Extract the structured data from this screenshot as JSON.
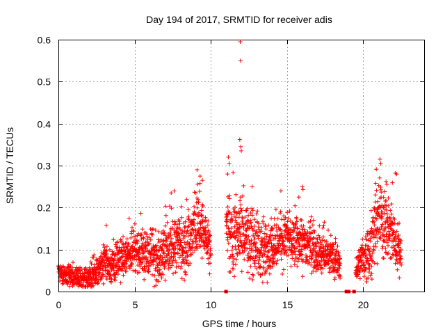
{
  "chart_data": {
    "type": "scatter",
    "title": "Day 194 of 2017, SRMTID for receiver adis",
    "xlabel": "GPS time / hours",
    "ylabel": "SRMTID / TECUs",
    "xlim": [
      0,
      24
    ],
    "ylim": [
      0,
      0.6
    ],
    "xticks": [
      "0",
      "5",
      "10",
      "15",
      "20"
    ],
    "yticks": [
      "0",
      "0.1",
      "0.2",
      "0.3",
      "0.4",
      "0.5",
      "0.6"
    ],
    "grid": true,
    "marker": "plus",
    "color": "#ff0000",
    "trend": [
      [
        0.0,
        0.045
      ],
      [
        0.5,
        0.04
      ],
      [
        1.0,
        0.035
      ],
      [
        1.5,
        0.03
      ],
      [
        2.0,
        0.03
      ],
      [
        2.5,
        0.045
      ],
      [
        3.0,
        0.07
      ],
      [
        3.5,
        0.06
      ],
      [
        4.0,
        0.075
      ],
      [
        4.5,
        0.09
      ],
      [
        5.0,
        0.1
      ],
      [
        5.5,
        0.09
      ],
      [
        6.0,
        0.085
      ],
      [
        6.5,
        0.075
      ],
      [
        7.0,
        0.095
      ],
      [
        7.5,
        0.12
      ],
      [
        8.0,
        0.11
      ],
      [
        8.5,
        0.115
      ],
      [
        9.0,
        0.16
      ],
      [
        9.5,
        0.14
      ],
      [
        10.0,
        0.1
      ],
      [
        10.5,
        null
      ],
      [
        11.0,
        0.14
      ],
      [
        11.5,
        0.13
      ],
      [
        12.0,
        0.15
      ],
      [
        12.5,
        0.12
      ],
      [
        13.0,
        0.11
      ],
      [
        13.5,
        0.1
      ],
      [
        14.0,
        0.11
      ],
      [
        14.5,
        0.12
      ],
      [
        15.0,
        0.13
      ],
      [
        15.5,
        0.12
      ],
      [
        16.0,
        0.11
      ],
      [
        16.5,
        0.11
      ],
      [
        17.0,
        0.1
      ],
      [
        17.5,
        0.085
      ],
      [
        18.0,
        0.08
      ],
      [
        18.5,
        0.06
      ],
      [
        19.0,
        null
      ],
      [
        19.5,
        0.05
      ],
      [
        20.0,
        0.08
      ],
      [
        20.5,
        0.1
      ],
      [
        21.0,
        0.18
      ],
      [
        21.5,
        0.16
      ],
      [
        22.0,
        0.13
      ],
      [
        22.5,
        0.08
      ]
    ],
    "noise": [
      [
        0.0,
        0.01
      ],
      [
        2.5,
        0.015
      ],
      [
        3.0,
        0.02
      ],
      [
        5.0,
        0.025
      ],
      [
        7.5,
        0.03
      ],
      [
        9.0,
        0.04
      ],
      [
        10.0,
        0.025
      ],
      [
        11.0,
        0.04
      ],
      [
        12.0,
        0.045
      ],
      [
        14.0,
        0.03
      ],
      [
        16.0,
        0.03
      ],
      [
        18.0,
        0.02
      ],
      [
        19.5,
        0.015
      ],
      [
        21.0,
        0.045
      ],
      [
        22.5,
        0.025
      ]
    ],
    "points_per_hour": 120,
    "gaps": [
      [
        10.25,
        10.95
      ],
      [
        18.85,
        19.35
      ]
    ],
    "outliers": [
      [
        11.93,
        0.595
      ],
      [
        11.95,
        0.55
      ],
      [
        11.9,
        0.362
      ],
      [
        11.97,
        0.345
      ],
      [
        12.0,
        0.335
      ],
      [
        11.15,
        0.32
      ],
      [
        11.2,
        0.305
      ],
      [
        11.1,
        0.28
      ],
      [
        9.1,
        0.29
      ],
      [
        9.3,
        0.275
      ],
      [
        9.45,
        0.265
      ],
      [
        7.6,
        0.24
      ],
      [
        7.4,
        0.235
      ],
      [
        16.0,
        0.25
      ],
      [
        16.05,
        0.243
      ],
      [
        14.6,
        0.24
      ],
      [
        21.1,
        0.315
      ],
      [
        21.15,
        0.305
      ],
      [
        22.1,
        0.282
      ],
      [
        22.2,
        0.28
      ],
      [
        21.5,
        0.262
      ],
      [
        21.55,
        0.255
      ]
    ],
    "zero_markers": [
      11.0,
      18.9,
      19.05,
      19.4
    ]
  }
}
